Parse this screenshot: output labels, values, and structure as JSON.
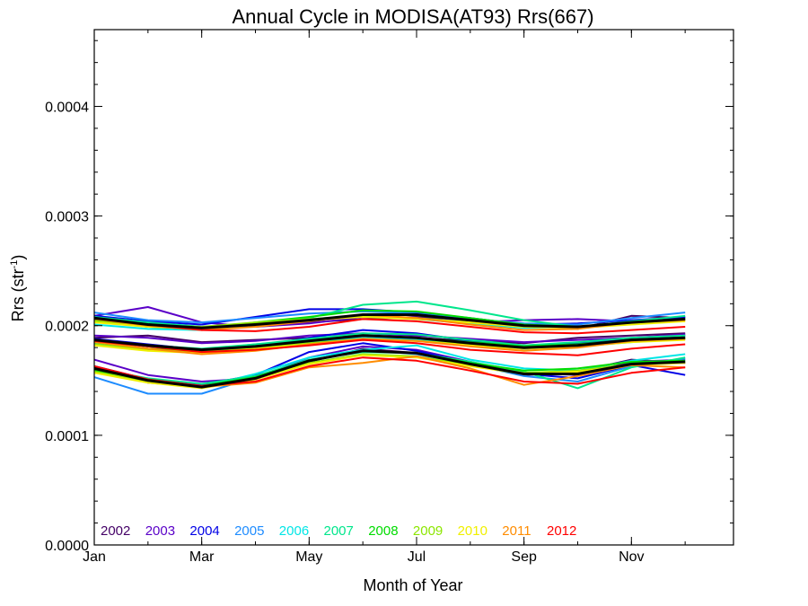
{
  "chart_data": {
    "type": "line",
    "title": "Annual Cycle in MODISA(AT93) Rrs(667)",
    "xlabel": "Month of Year",
    "ylabel": "Rrs (str",
    "ylabel_sup": "-1",
    "ylabel_close": ")",
    "x": [
      1,
      2,
      3,
      4,
      5,
      6,
      7,
      8,
      9,
      10,
      11,
      12
    ],
    "xlim": [
      1,
      12.9
    ],
    "ylim": [
      0.0,
      0.00047
    ],
    "x_ticks": [
      {
        "value": 1,
        "label": "Jan"
      },
      {
        "value": 3,
        "label": "Mar"
      },
      {
        "value": 5,
        "label": "May"
      },
      {
        "value": 7,
        "label": "Jul"
      },
      {
        "value": 9,
        "label": "Sep"
      },
      {
        "value": 11,
        "label": "Nov"
      }
    ],
    "y_ticks": [
      {
        "value": 0.0,
        "label": "0.0000"
      },
      {
        "value": 0.0001,
        "label": "0.0001"
      },
      {
        "value": 0.0002,
        "label": "0.0002"
      },
      {
        "value": 0.0003,
        "label": "0.0003"
      },
      {
        "value": 0.0004,
        "label": "0.0004"
      }
    ],
    "legend_position": "bottom-left",
    "series": [
      {
        "name": "2002",
        "color": "#440066",
        "values": [
          [
            0.000189,
            0.000191,
            0.000185,
            0.000187,
            0.000189,
            0.000191,
            0.000189,
            0.000186,
            0.000184,
            0.000189,
            0.000191,
            0.000193
          ],
          [
            0.000206,
            0.000202,
            0.000199,
            0.000201,
            0.000203,
            0.000206,
            0.000208,
            0.000205,
            0.000201,
            0.000197,
            0.000209,
            0.000207
          ],
          [
            0.000162,
            0.000148,
            0.000144,
            0.000151,
            0.000167,
            0.000179,
            0.000175,
            0.000164,
            0.000155,
            0.000158,
            0.000169,
            0.000166
          ]
        ]
      },
      {
        "name": "2003",
        "color": "#5a00c8",
        "values": [
          [
            0.000209,
            0.000217,
            0.000203,
            0.000199,
            0.000202,
            0.000208,
            0.000211,
            0.000203,
            0.000205,
            0.000206,
            0.000204,
            0.000207
          ],
          [
            0.000191,
            0.000189,
            0.000184,
            0.000186,
            0.000191,
            0.000193,
            0.000191,
            0.000188,
            0.000185,
            0.000187,
            0.000189,
            0.000192
          ],
          [
            0.000169,
            0.000155,
            0.000149,
            0.000152,
            0.000171,
            0.000181,
            0.000178,
            0.000167,
            0.000157,
            0.000155,
            0.000167,
            0.000169
          ]
        ]
      },
      {
        "name": "2004",
        "color": "#0000e6",
        "values": [
          [
            0.000209,
            0.000204,
            0.000201,
            0.000208,
            0.000215,
            0.000215,
            0.000212,
            0.000207,
            0.000201,
            0.000202,
            0.000205,
            0.000208
          ],
          [
            0.000188,
            0.000183,
            0.000178,
            0.000181,
            0.000189,
            0.000196,
            0.000193,
            0.000186,
            0.000182,
            0.000184,
            0.000188,
            0.000191
          ],
          [
            0.000163,
            0.000151,
            0.000146,
            0.000155,
            0.000176,
            0.000184,
            0.000177,
            0.000166,
            0.000156,
            0.000152,
            0.000164,
            0.000155
          ]
        ]
      },
      {
        "name": "2005",
        "color": "#1e8cff",
        "values": [
          [
            0.000212,
            0.000205,
            0.000203,
            0.000207,
            0.000211,
            0.000213,
            0.000211,
            0.000206,
            0.000202,
            0.000201,
            0.000207,
            0.000212
          ],
          [
            0.000186,
            0.000181,
            0.000178,
            0.000183,
            0.000187,
            0.000191,
            0.000188,
            0.000183,
            0.000179,
            0.000182,
            0.000187,
            0.000189
          ],
          [
            0.000153,
            0.000138,
            0.000138,
            0.000153,
            0.000168,
            0.000178,
            0.000174,
            0.000165,
            0.000154,
            0.000149,
            0.000163,
            0.00017
          ]
        ]
      },
      {
        "name": "2006",
        "color": "#00e6e6",
        "values": [
          [
            0.000201,
            0.000197,
            0.000196,
            0.000201,
            0.000206,
            0.000209,
            0.000206,
            0.000202,
            0.000198,
            0.000199,
            0.000203,
            0.000206
          ],
          [
            0.000184,
            0.000179,
            0.000176,
            0.000179,
            0.000185,
            0.000189,
            0.000187,
            0.000183,
            0.000179,
            0.000181,
            0.000185,
            0.000188
          ],
          [
            0.000159,
            0.000149,
            0.000144,
            0.000156,
            0.000171,
            0.000178,
            0.000182,
            0.000169,
            0.000161,
            0.000159,
            0.000168,
            0.000174
          ]
        ]
      },
      {
        "name": "2007",
        "color": "#00e68c",
        "values": [
          [
            0.000208,
            0.000203,
            0.000199,
            0.000202,
            0.000207,
            0.000219,
            0.000222,
            0.000214,
            0.000205,
            0.000199,
            0.000204,
            0.000209
          ],
          [
            0.000187,
            0.000182,
            0.000179,
            0.000183,
            0.000188,
            0.000193,
            0.000192,
            0.000187,
            0.000182,
            0.000185,
            0.000189,
            0.000191
          ],
          [
            0.000161,
            0.000152,
            0.000147,
            0.000154,
            0.000169,
            0.000176,
            0.000175,
            0.000167,
            0.000158,
            0.000143,
            0.000162,
            0.000171
          ]
        ]
      },
      {
        "name": "2008",
        "color": "#00dc00",
        "values": [
          [
            0.000205,
            0.000199,
            0.000197,
            0.000203,
            0.000208,
            0.000214,
            0.000213,
            0.000207,
            0.000201,
            0.000199,
            0.000203,
            0.000206
          ],
          [
            0.000185,
            0.000179,
            0.000176,
            0.000181,
            0.000186,
            0.000191,
            0.000189,
            0.000185,
            0.000181,
            0.000183,
            0.000187,
            0.000189
          ],
          [
            0.000159,
            0.000149,
            0.000145,
            0.000153,
            0.000168,
            0.000177,
            0.000175,
            0.000166,
            0.000159,
            0.000161,
            0.000167,
            0.000168
          ]
        ]
      },
      {
        "name": "2009",
        "color": "#8ce600",
        "values": [
          [
            0.000204,
            0.0002,
            0.000199,
            0.000203,
            0.000206,
            0.000209,
            0.000207,
            0.000203,
            0.000199,
            0.000198,
            0.000202,
            0.000205
          ],
          [
            0.000183,
            0.000178,
            0.000176,
            0.00018,
            0.000184,
            0.000188,
            0.000186,
            0.000183,
            0.00018,
            0.000182,
            0.000186,
            0.000188
          ],
          [
            0.000158,
            0.000149,
            0.000144,
            0.000152,
            0.000166,
            0.000174,
            0.000172,
            0.000164,
            0.000157,
            0.000159,
            0.000165,
            0.000167
          ]
        ]
      },
      {
        "name": "2010",
        "color": "#f0f000",
        "values": [
          [
            0.000203,
            0.000199,
            0.000198,
            0.000201,
            0.000205,
            0.000208,
            0.000206,
            0.000203,
            0.000199,
            0.000198,
            0.000201,
            0.000204
          ],
          [
            0.000182,
            0.000177,
            0.000175,
            0.000179,
            0.000183,
            0.000187,
            0.000186,
            0.000182,
            0.000179,
            0.000181,
            0.000185,
            0.000187
          ],
          [
            0.000157,
            0.000148,
            0.000143,
            0.000151,
            0.000165,
            0.000173,
            0.000171,
            0.000163,
            0.000156,
            0.000158,
            0.000164,
            0.000166
          ]
        ]
      },
      {
        "name": "2011",
        "color": "#ff8c00",
        "values": [
          [
            0.000206,
            0.0002,
            0.000196,
            0.000199,
            0.000204,
            0.00021,
            0.000207,
            0.000201,
            0.000196,
            0.000197,
            0.000203,
            0.000205
          ],
          [
            0.000185,
            0.000179,
            0.000174,
            0.000177,
            0.000183,
            0.000188,
            0.000186,
            0.000181,
            0.000177,
            0.00018,
            0.000186,
            0.000188
          ],
          [
            0.000162,
            0.00015,
            0.000144,
            0.000148,
            0.000162,
            0.000166,
            0.000172,
            0.000161,
            0.000146,
            0.000154,
            0.000164,
            0.000162
          ]
        ]
      },
      {
        "name": "2012",
        "color": "#ff0000",
        "values": [
          [
            0.000207,
            0.000201,
            0.000196,
            0.000195,
            0.000199,
            0.000206,
            0.000204,
            0.000199,
            0.000194,
            0.000193,
            0.000196,
            0.000199
          ],
          [
            0.000186,
            0.000181,
            0.000176,
            0.000178,
            0.000182,
            0.000187,
            0.000184,
            0.000178,
            0.000175,
            0.000173,
            0.000179,
            0.000183
          ],
          [
            0.000163,
            0.000151,
            0.000145,
            0.000149,
            0.000163,
            0.000171,
            0.000168,
            0.000159,
            0.000149,
            0.000147,
            0.000157,
            0.000162
          ]
        ]
      }
    ],
    "mean_series": {
      "color": "#000000",
      "values": [
        [
          0.000207,
          0.000201,
          0.000198,
          0.000201,
          0.000205,
          0.00021,
          0.00021,
          0.000205,
          0.0002,
          0.000199,
          0.000203,
          0.000206
        ],
        [
          0.000187,
          0.000182,
          0.000178,
          0.000181,
          0.000186,
          0.000191,
          0.000189,
          0.000184,
          0.00018,
          0.000182,
          0.000187,
          0.000189
        ],
        [
          0.000161,
          0.00015,
          0.000144,
          0.000152,
          0.000168,
          0.000177,
          0.000175,
          0.000165,
          0.000156,
          0.000156,
          0.000165,
          0.000167
        ]
      ]
    }
  }
}
